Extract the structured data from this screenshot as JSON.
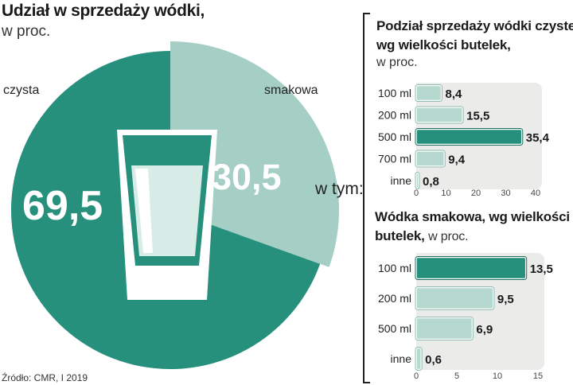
{
  "title": "Udział w sprzedaży wódki,",
  "unit": "w proc.",
  "source": "Źródło: CMR, I 2019",
  "in_which_label": "w tym:",
  "colors": {
    "teal": "#26907c",
    "light_teal": "#a5cec4",
    "bar_light": "#b5d8cf",
    "panel_bg": "#ebebea",
    "dark_text": "#1a1a1a"
  },
  "chart_data": [
    {
      "type": "pie",
      "categories": [
        "czysta",
        "smakowa"
      ],
      "values": [
        69.5,
        30.5
      ],
      "value_labels": [
        "69,5",
        "30,5"
      ],
      "title": "Udział w sprzedaży wódki,",
      "subtitle": "w proc.",
      "icon": "glass-icon"
    },
    {
      "type": "bar",
      "orientation": "horizontal",
      "title": "Podział sprzedaży wódki czystej, wg wielkości butelek,",
      "title_lines": [
        "Podział sprzedaży wódki czystej,",
        "wg wielkości butelek,"
      ],
      "subtitle": "w proc.",
      "categories": [
        "100 ml",
        "200 ml",
        "500 ml",
        "700 ml",
        "inne"
      ],
      "values": [
        8.4,
        15.5,
        35.4,
        9.4,
        0.8
      ],
      "value_labels": [
        "8,4",
        "15,5",
        "35,4",
        "9,4",
        "0,8"
      ],
      "highlight": "500 ml",
      "xlim": [
        0,
        40
      ],
      "xticks": [
        0,
        10,
        20,
        30,
        40
      ]
    },
    {
      "type": "bar",
      "orientation": "horizontal",
      "title": "Wódka smakowa, wg wielkości butelek,",
      "title_lines": [
        "Wódka smakowa, wg wielkości",
        "butelek,"
      ],
      "subtitle": "w proc.",
      "categories": [
        "100 ml",
        "200 ml",
        "500 ml",
        "inne"
      ],
      "values": [
        13.5,
        9.5,
        6.9,
        0.6
      ],
      "value_labels": [
        "13,5",
        "9,5",
        "6,9",
        "0,6"
      ],
      "highlight": "100 ml",
      "xlim": [
        0,
        15
      ],
      "xticks": [
        0,
        5,
        10,
        15
      ]
    }
  ]
}
